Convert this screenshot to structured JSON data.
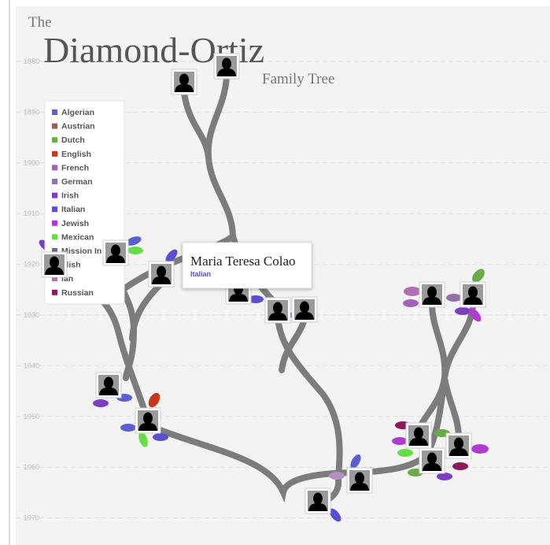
{
  "header": {
    "the": "The",
    "name": "Diamond-Ortiz",
    "subtitle": "Family Tree"
  },
  "years": [
    "1880",
    "1890",
    "1900",
    "1910",
    "1920",
    "1930",
    "1940",
    "1950",
    "1960",
    "1970"
  ],
  "legend": [
    {
      "label": "Algerian",
      "color": "#5b5fd0"
    },
    {
      "label": "Austrian",
      "color": "#a0605a"
    },
    {
      "label": "Dutch",
      "color": "#6aaa48"
    },
    {
      "label": "English",
      "color": "#c9351e"
    },
    {
      "label": "French",
      "color": "#a561b8"
    },
    {
      "label": "German",
      "color": "#9270a8"
    },
    {
      "label": "Irish",
      "color": "#7a3fc0"
    },
    {
      "label": "Italian",
      "color": "#5a4fcf"
    },
    {
      "label": "Jewish",
      "color": "#b03ccf"
    },
    {
      "label": "Mexican",
      "color": "#66dd44"
    },
    {
      "label": "Mission In",
      "color": "#6a6a80"
    },
    {
      "label": "olish",
      "color": "#b090c0"
    },
    {
      "label": "ian",
      "color": "#b070b0"
    },
    {
      "label": "Russian",
      "color": "#8a1a5a"
    }
  ],
  "tooltip": {
    "name": "Maria Teresa Colao",
    "origin": "Italian"
  }
}
